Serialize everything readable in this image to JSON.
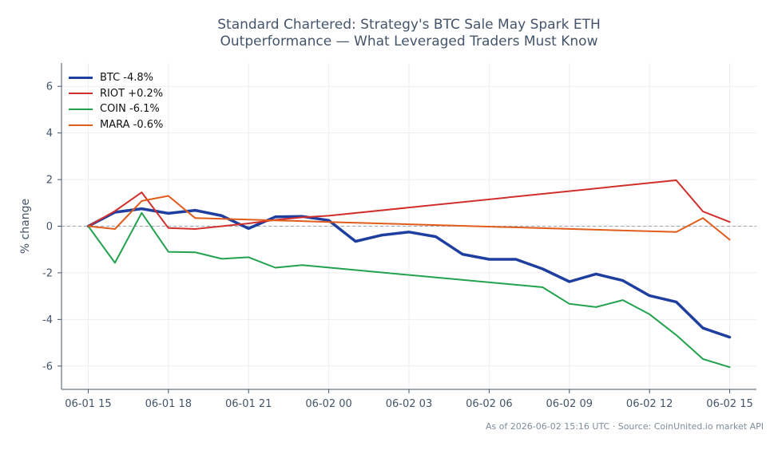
{
  "title_lines": [
    "Standard Chartered: Strategy's BTC Sale May Spark ETH",
    "Outperformance — What Leveraged Traders Must Know"
  ],
  "footer": "As of 2026-06-02 15:16 UTC · Source: CoinUnited.io market API",
  "colors": {
    "axis": "#44546a",
    "grid": "#ebedf0",
    "zero_line": "#9aa5b1"
  },
  "chart_data": {
    "type": "line",
    "title": "Standard Chartered: Strategy's BTC Sale May Spark ETH Outperformance — What Leveraged Traders Must Know",
    "xlabel": "",
    "ylabel": "% change",
    "xlim": [
      "06-01 14:00",
      "06-02 16:00"
    ],
    "ylim": [
      -7,
      7
    ],
    "x_ticks": [
      "06-01 15",
      "06-01 18",
      "06-01 21",
      "06-02 00",
      "06-02 03",
      "06-02 06",
      "06-02 09",
      "06-02 12",
      "06-02 15"
    ],
    "y_ticks": [
      -6,
      -4,
      -2,
      0,
      2,
      4,
      6
    ],
    "grid": true,
    "zero_reference_line": true,
    "legend_position": "top-left",
    "series": [
      {
        "name": "BTC -4.8%",
        "color": "#1f3fa0",
        "width": 3.5,
        "points": [
          [
            "06-01 15:00",
            0.0
          ],
          [
            "06-01 16:00",
            0.6
          ],
          [
            "06-01 17:00",
            0.75
          ],
          [
            "06-01 18:00",
            0.55
          ],
          [
            "06-01 19:00",
            0.68
          ],
          [
            "06-01 20:00",
            0.45
          ],
          [
            "06-01 21:00",
            -0.1
          ],
          [
            "06-01 22:00",
            0.4
          ],
          [
            "06-01 23:00",
            0.42
          ],
          [
            "06-02 00:00",
            0.25
          ],
          [
            "06-02 01:00",
            -0.65
          ],
          [
            "06-02 02:00",
            -0.38
          ],
          [
            "06-02 03:00",
            -0.25
          ],
          [
            "06-02 04:00",
            -0.45
          ],
          [
            "06-02 05:00",
            -1.2
          ],
          [
            "06-02 06:00",
            -1.42
          ],
          [
            "06-02 07:00",
            -1.42
          ],
          [
            "06-02 08:00",
            -1.83
          ],
          [
            "06-02 09:00",
            -2.38
          ],
          [
            "06-02 10:00",
            -2.05
          ],
          [
            "06-02 11:00",
            -2.33
          ],
          [
            "06-02 12:00",
            -2.98
          ],
          [
            "06-02 13:00",
            -3.25
          ],
          [
            "06-02 14:00",
            -4.37
          ],
          [
            "06-02 15:00",
            -4.76
          ]
        ]
      },
      {
        "name": "RIOT +0.2%",
        "color": "#d12f2b",
        "width": 2,
        "points": [
          [
            "06-01 15:00",
            0.0
          ],
          [
            "06-01 16:00",
            0.65
          ],
          [
            "06-01 17:00",
            1.45
          ],
          [
            "06-01 18:00",
            -0.08
          ],
          [
            "06-01 19:00",
            -0.12
          ],
          [
            "06-01 20:00",
            0.0
          ],
          [
            "06-01 21:00",
            0.12
          ],
          [
            "06-01 22:00",
            0.27
          ],
          [
            "06-01 23:00",
            0.38
          ],
          [
            "06-02 00:00",
            0.45
          ],
          [
            "06-02 13:00",
            1.97
          ],
          [
            "06-02 14:00",
            0.63
          ],
          [
            "06-02 15:00",
            0.18
          ]
        ]
      },
      {
        "name": "COIN -6.1%",
        "color": "#22a14e",
        "width": 2,
        "points": [
          [
            "06-01 15:00",
            0.0
          ],
          [
            "06-01 16:00",
            -1.57
          ],
          [
            "06-01 17:00",
            0.57
          ],
          [
            "06-01 18:00",
            -1.1
          ],
          [
            "06-01 19:00",
            -1.12
          ],
          [
            "06-01 20:00",
            -1.4
          ],
          [
            "06-01 21:00",
            -1.33
          ],
          [
            "06-01 22:00",
            -1.78
          ],
          [
            "06-01 23:00",
            -1.67
          ],
          [
            "06-02 08:00",
            -2.62
          ],
          [
            "06-02 09:00",
            -3.33
          ],
          [
            "06-02 10:00",
            -3.47
          ],
          [
            "06-02 11:00",
            -3.17
          ],
          [
            "06-02 12:00",
            -3.78
          ],
          [
            "06-02 13:00",
            -4.67
          ],
          [
            "06-02 14:00",
            -5.7
          ],
          [
            "06-02 15:00",
            -6.05
          ]
        ]
      },
      {
        "name": "MARA -0.6%",
        "color": "#e05c1a",
        "width": 2,
        "points": [
          [
            "06-01 15:00",
            0.0
          ],
          [
            "06-01 16:00",
            -0.12
          ],
          [
            "06-01 17:00",
            1.08
          ],
          [
            "06-01 18:00",
            1.3
          ],
          [
            "06-01 19:00",
            0.35
          ],
          [
            "06-01 20:00",
            0.32
          ],
          [
            "06-01 21:00",
            0.28
          ],
          [
            "06-01 22:00",
            0.25
          ],
          [
            "06-01 23:00",
            0.22
          ],
          [
            "06-02 00:00",
            0.18
          ],
          [
            "06-02 13:00",
            -0.25
          ],
          [
            "06-02 14:00",
            0.35
          ],
          [
            "06-02 15:00",
            -0.58
          ]
        ]
      }
    ]
  }
}
